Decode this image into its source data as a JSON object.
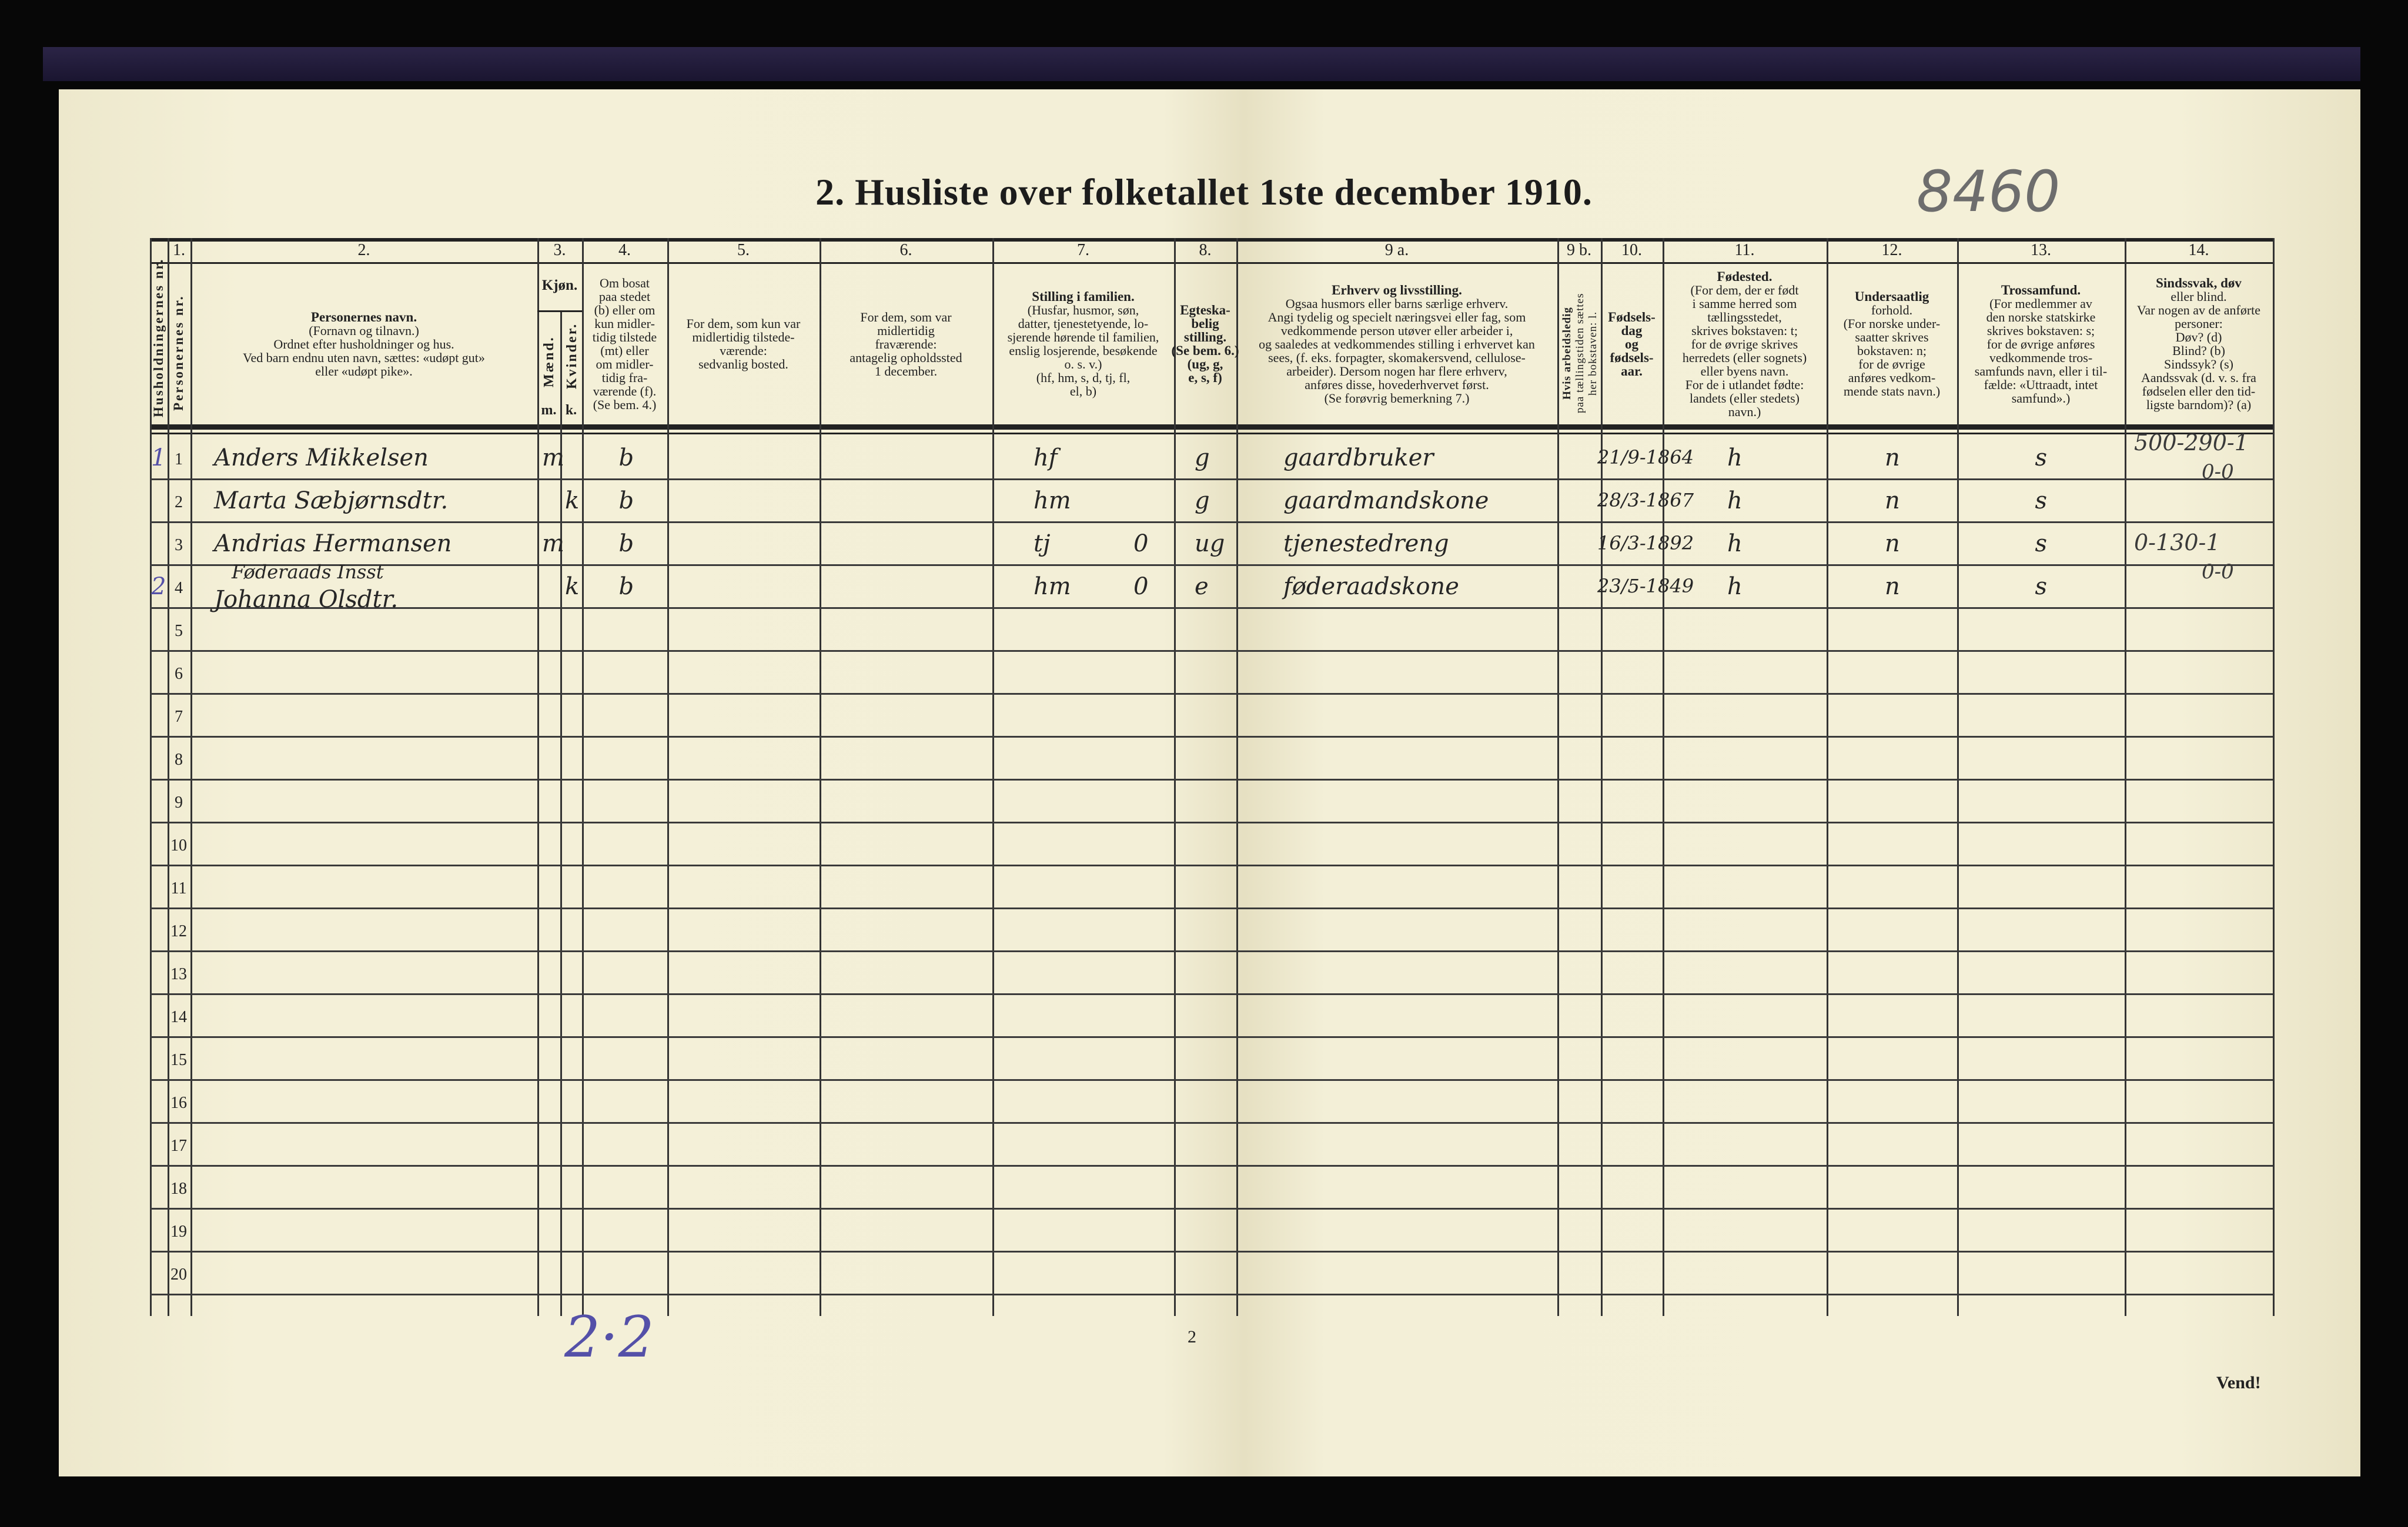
{
  "title": "2.  Husliste over folketallet 1ste december 1910.",
  "archive_number": "8460",
  "page_number": "2",
  "turn_label": "Vend!",
  "tally_note": "2·2",
  "colors": {
    "paper": "#f3efd7",
    "ink": "#262626",
    "blue_pencil": "#5450a8",
    "background": "#070707"
  },
  "header": {
    "col1_num": "1.",
    "household_nr_label": "Husholdningernes nr.",
    "person_nr_label": "Personernes nr.",
    "col2": {
      "num": "2.",
      "lines": [
        "Personernes navn.",
        "(Fornavn og tilnavn.)",
        "Ordnet efter husholdninger og hus.",
        "Ved barn endnu uten navn, sættes: «udøpt gut»",
        "eller «udøpt pike»."
      ]
    },
    "col3": {
      "num": "3.",
      "title": "Kjøn.",
      "male": "Mænd.",
      "female": "Kvinder.",
      "m": "m.",
      "k": "k."
    },
    "col4": {
      "num": "4.",
      "lines": [
        "Om bosat",
        "paa stedet",
        "(b) eller om",
        "kun midler-",
        "tidig tilstede",
        "(mt) eller",
        "om midler-",
        "tidig fra-",
        "værende (f).",
        "(Se bem. 4.)"
      ]
    },
    "col5": {
      "num": "5.",
      "lines": [
        "For dem, som kun var",
        "midlertidig tilstede-",
        "værende:",
        "sedvanlig bosted."
      ]
    },
    "col6": {
      "num": "6.",
      "lines": [
        "For dem, som var",
        "midlertidig",
        "fraværende:",
        "antagelig opholdssted",
        "1 december."
      ]
    },
    "col7": {
      "num": "7.",
      "lines": [
        "Stilling i familien.",
        "(Husfar, husmor, søn,",
        "datter, tjenestetyende, lo-",
        "sjerende hørende til familien,",
        "enslig losjerende, besøkende",
        "o. s. v.)",
        "(hf, hm, s, d, tj, fl,",
        "el, b)"
      ]
    },
    "col8": {
      "num": "8.",
      "lines": [
        "Egteska-",
        "belig",
        "stilling.",
        "(Se bem. 6.)",
        "(ug, g,",
        "e, s, f)"
      ]
    },
    "col9a": {
      "num": "9 a.",
      "lines": [
        "Erhverv og livsstilling.",
        "Ogsaa husmors eller barns særlige erhverv.",
        "Angi tydelig og specielt næringsvei eller fag, som",
        "vedkommende person utøver eller arbeider i,",
        "og saaledes at vedkommendes stilling i erhvervet kan",
        "sees, (f. eks. forpagter, skomakersvend, cellulose-",
        "arbeider). Dersom nogen har flere erhverv,",
        "anføres disse, hovederhvervet først.",
        "(Se forøvrig bemerkning 7.)"
      ]
    },
    "col9b": {
      "num": "9 b.",
      "lines": [
        "Hvis arbeidsledig",
        "paa tællingstiden sættes",
        "her bokstaven: l."
      ]
    },
    "col10": {
      "num": "10.",
      "lines": [
        "Fødsels-",
        "dag",
        "og",
        "fødsels-",
        "aar."
      ]
    },
    "col11": {
      "num": "11.",
      "lines": [
        "Fødested.",
        "(For dem, der er født",
        "i samme herred som",
        "tællingsstedet,",
        "skrives bokstaven: t;",
        "for de øvrige skrives",
        "herredets (eller sognets)",
        "eller byens navn.",
        "For de i utlandet fødte:",
        "landets (eller stedets)",
        "navn.)"
      ]
    },
    "col12": {
      "num": "12.",
      "lines": [
        "Undersaatlig",
        "forhold.",
        "(For norske under-",
        "saatter skrives",
        "bokstaven: n;",
        "for de øvrige",
        "anføres vedkom-",
        "mende stats navn.)"
      ]
    },
    "col13": {
      "num": "13.",
      "lines": [
        "Trossamfund.",
        "(For medlemmer av",
        "den norske statskirke",
        "skrives bokstaven: s;",
        "for de øvrige anføres",
        "vedkommende tros-",
        "samfunds navn, eller i til-",
        "fælde: «Uttraadt, intet",
        "samfund».)"
      ]
    },
    "col14": {
      "num": "14.",
      "lines": [
        "Sindssvak, døv",
        "eller blind.",
        "Var nogen av de anførte",
        "personer:",
        "Døv?          (d)",
        "Blind?         (b)",
        "Sindssyk?  (s)",
        "Aandssvak (d. v. s. fra",
        "fødselen eller den tid-",
        "ligste barndom)? (a)"
      ]
    }
  },
  "row_numbers": [
    "1",
    "2",
    "3",
    "4",
    "5",
    "6",
    "7",
    "8",
    "9",
    "10",
    "11",
    "12",
    "13",
    "14",
    "15",
    "16",
    "17",
    "18",
    "19",
    "20"
  ],
  "rows": [
    {
      "household": "1",
      "name": "Anders Mikkelsen",
      "sex_m": "m",
      "sex_k": "",
      "residence": "b",
      "family_position": "hf",
      "position_mark": "",
      "marital": "g",
      "occupation": "gaardbruker",
      "birth": "21/9-1864",
      "birthplace": "h",
      "citizenship": "n",
      "religion": "s"
    },
    {
      "household": "",
      "name": "Marta Sæbjørnsdtr.",
      "sex_m": "",
      "sex_k": "k",
      "residence": "b",
      "family_position": "hm",
      "position_mark": "",
      "marital": "g",
      "occupation": "gaardmandskone",
      "birth": "28/3-1867",
      "birthplace": "h",
      "citizenship": "n",
      "religion": "s"
    },
    {
      "household": "",
      "name": "Andrias Hermansen",
      "sex_m": "m",
      "sex_k": "",
      "residence": "b",
      "family_position": "tj",
      "position_mark": "0",
      "marital": "ug",
      "occupation": "tjenestedreng",
      "birth": "16/3-1892",
      "birthplace": "h",
      "citizenship": "n",
      "religion": "s"
    },
    {
      "household": "2",
      "note": "Føderaads Insst",
      "name": "Johanna Olsdtr.",
      "sex_m": "",
      "sex_k": "k",
      "residence": "b",
      "family_position": "hm",
      "position_mark": "0",
      "marital": "e",
      "occupation": "føderaadskone",
      "birth": "23/5-1849",
      "birthplace": "h",
      "citizenship": "n",
      "religion": "s"
    }
  ],
  "col14_notes": [
    {
      "line1": "500-290-1",
      "line2": "0-0"
    },
    {
      "line1": "0-130-1",
      "line2": "0-0"
    }
  ]
}
